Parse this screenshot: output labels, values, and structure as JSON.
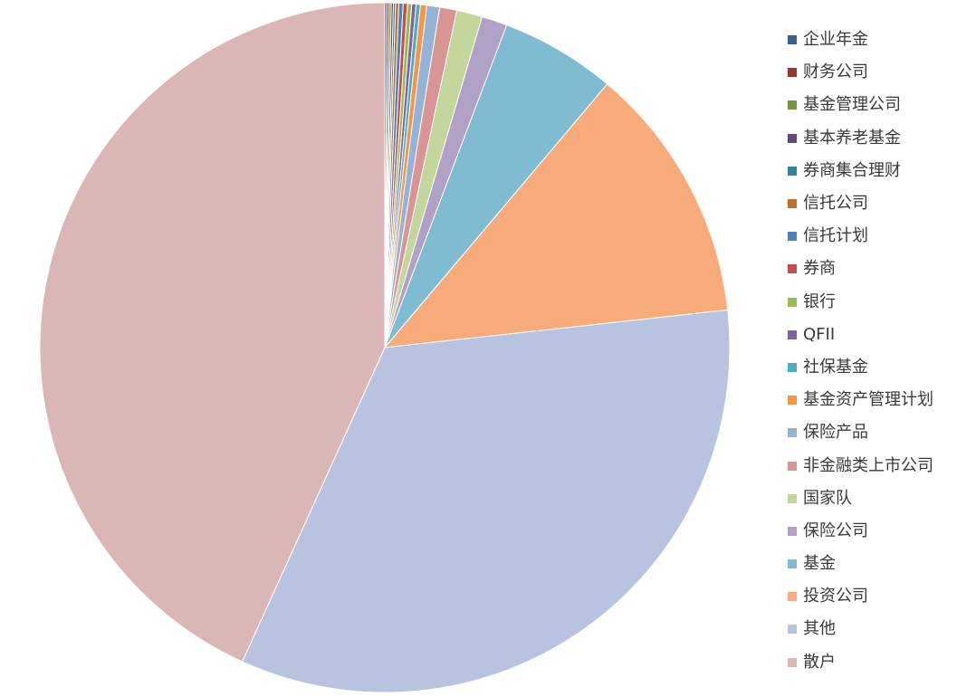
{
  "chart_data": {
    "type": "pie",
    "start_angle_deg": 0,
    "direction": "clockwise",
    "legend_position": "right",
    "slices": [
      {
        "name": "企业年金",
        "value": 0.1,
        "color": "#3c5f91"
      },
      {
        "name": "财务公司",
        "value": 0.1,
        "color": "#943634"
      },
      {
        "name": "基金管理公司",
        "value": 0.1,
        "color": "#77933c"
      },
      {
        "name": "基本养老基金",
        "value": 0.1,
        "color": "#5f497a"
      },
      {
        "name": "券商集合理财",
        "value": 0.1,
        "color": "#31849b"
      },
      {
        "name": "信托公司",
        "value": 0.15,
        "color": "#c0702b"
      },
      {
        "name": "信托计划",
        "value": 0.2,
        "color": "#4f81bd"
      },
      {
        "name": "券商",
        "value": 0.2,
        "color": "#c0504d"
      },
      {
        "name": "银行",
        "value": 0.2,
        "color": "#9bbb59"
      },
      {
        "name": "QFII",
        "value": 0.2,
        "color": "#8064a2"
      },
      {
        "name": "社保基金",
        "value": 0.2,
        "color": "#4bacc6"
      },
      {
        "name": "基金资产管理计划",
        "value": 0.3,
        "color": "#f79646"
      },
      {
        "name": "保险产品",
        "value": 0.6,
        "color": "#95b3d7"
      },
      {
        "name": "非金融类上市公司",
        "value": 0.8,
        "color": "#d99594"
      },
      {
        "name": "国家队",
        "value": 1.2,
        "color": "#c3d69b"
      },
      {
        "name": "保险公司",
        "value": 1.2,
        "color": "#b2a1c7"
      },
      {
        "name": "基金",
        "value": 5.4,
        "color": "#7fbcd2"
      },
      {
        "name": "投资公司",
        "value": 12.1,
        "color": "#f7ab7b"
      },
      {
        "name": "其他",
        "value": 33.5,
        "color": "#b8c4df"
      },
      {
        "name": "散户",
        "value": 43.2,
        "color": "#dbb6b6"
      }
    ]
  }
}
